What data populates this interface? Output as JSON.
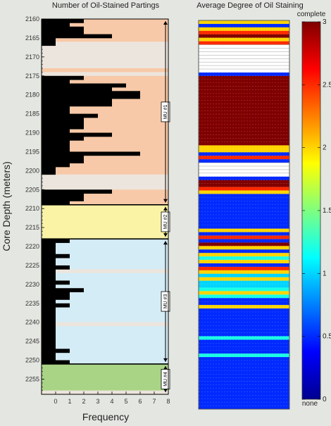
{
  "chart_data": [
    {
      "type": "bar",
      "orientation": "horizontal",
      "title": "Number of Oil-Stained Partings",
      "xlabel": "Frequency",
      "ylabel": "Core Depth (meters)",
      "xlim": [
        -1,
        8
      ],
      "x_ticks": [
        "0",
        "1",
        "2",
        "3",
        "4",
        "5",
        "6",
        "7",
        "8"
      ],
      "y_ticks": [
        "2160",
        "2165",
        "2170",
        "2175",
        "2180",
        "2185",
        "2190",
        "2195",
        "2200",
        "2205",
        "2210",
        "2215",
        "2220",
        "2225",
        "2230",
        "2235",
        "2240",
        "2245",
        "2250",
        "2255"
      ],
      "ylim": [
        2160,
        2259
      ],
      "units": [
        {
          "label": "MU #1",
          "top": 2160,
          "bottom": 2209,
          "color": "#f7c9a8"
        },
        {
          "label": "MU #2",
          "top": 2209,
          "bottom": 2218,
          "color": "#faf3a6"
        },
        {
          "label": "MU #3",
          "top": 2218,
          "bottom": 2251,
          "color": "#d4ecf6"
        },
        {
          "label": "MU #4",
          "top": 2251,
          "bottom": 2259,
          "color": "#a9d486"
        }
      ],
      "bands": [
        {
          "top": 2166,
          "bottom": 2173,
          "color": "#ece5dd"
        },
        {
          "top": 2174,
          "bottom": 2175,
          "color": "#ece5dd"
        },
        {
          "top": 2201,
          "bottom": 2205,
          "color": "#ece5dd"
        },
        {
          "top": 2226,
          "bottom": 2227,
          "color": "#ece5dd"
        },
        {
          "top": 2240,
          "bottom": 2241,
          "color": "#ece5dd"
        },
        {
          "top": 2258,
          "bottom": 2259,
          "color": "#ece5dd"
        }
      ],
      "depths": [
        2160,
        2161,
        2162,
        2163,
        2164,
        2165,
        2166,
        2175,
        2176,
        2177,
        2178,
        2179,
        2180,
        2181,
        2182,
        2183,
        2184,
        2185,
        2186,
        2187,
        2188,
        2189,
        2190,
        2191,
        2192,
        2193,
        2194,
        2195,
        2196,
        2197,
        2198,
        2199,
        2200,
        2205,
        2206,
        2207,
        2208,
        2218,
        2219,
        2220,
        2221,
        2222,
        2223,
        2224,
        2225,
        2226,
        2227,
        2228,
        2229,
        2230,
        2231,
        2232,
        2233,
        2234,
        2235,
        2236,
        2237,
        2238,
        2239,
        2240,
        2241,
        2242,
        2243,
        2244,
        2245,
        2246,
        2247,
        2248,
        2249,
        2250
      ],
      "values": [
        2,
        1,
        2,
        2,
        4,
        0,
        0,
        2,
        1,
        5,
        4,
        6,
        6,
        4,
        4,
        1,
        1,
        3,
        2,
        2,
        2,
        1,
        4,
        2,
        1,
        1,
        1,
        6,
        2,
        2,
        1,
        0,
        0,
        4,
        2,
        2,
        1,
        1,
        0,
        0,
        0,
        1,
        0,
        0,
        1,
        0,
        0,
        0,
        1,
        0,
        2,
        1,
        1,
        0,
        1,
        0,
        0,
        0,
        0,
        0,
        0,
        0,
        0,
        0,
        0,
        0,
        1,
        0,
        0,
        1
      ]
    },
    {
      "type": "heatmap",
      "title": "Average Degree of Oil Staining",
      "colorbar": {
        "min": 0,
        "max": 3,
        "ticks": [
          "0",
          "0.5",
          "1",
          "1.5",
          "2",
          "2.5",
          "3"
        ],
        "top_label": "complete",
        "bottom_label": "none"
      },
      "depth_range": [
        2160,
        2259
      ],
      "levels": [
        2,
        0.5,
        2,
        2.5,
        3,
        2,
        2.5,
        0,
        0,
        0,
        0,
        0,
        0,
        0,
        0,
        0.5,
        3,
        3,
        3,
        3,
        3,
        3,
        3,
        3,
        3,
        3,
        3,
        3,
        3,
        3,
        3,
        3,
        3,
        3,
        3,
        3,
        2,
        2,
        0.5,
        2.5,
        0.5,
        0,
        0,
        0,
        0,
        0.5,
        3,
        3,
        2.5,
        2,
        0.5,
        0.5,
        0.5,
        0.5,
        0.5,
        0.5,
        0.5,
        0.5,
        0.5,
        0.5,
        2,
        0.5,
        2.5,
        0.5,
        3,
        2,
        0.5,
        2,
        1.2,
        2,
        0.5,
        2.5,
        2,
        1,
        2,
        1,
        1,
        1.2,
        2,
        1.2,
        0.5,
        0.5,
        2,
        0.5,
        0.5,
        0.5,
        0.5,
        0.5,
        0.5,
        0.5,
        0.5,
        1.2,
        0.5,
        0.5,
        0.5,
        0.5,
        1.2,
        0.5,
        0.5,
        0.5,
        0.5,
        0.5,
        0.5,
        0.5,
        0.5,
        0.5,
        0.5,
        0.5,
        0.5,
        0.5,
        0.5,
        0.5
      ]
    }
  ]
}
